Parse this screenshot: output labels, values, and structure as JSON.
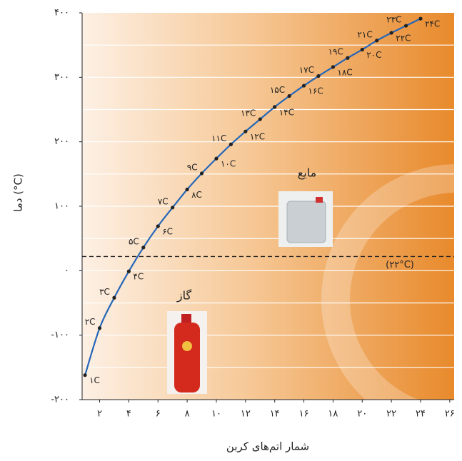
{
  "chart_data": {
    "type": "line",
    "y_axis_label": "دما (°C)",
    "x_axis_label": "شمار اتم‌های کربن",
    "x": [
      1,
      2,
      3,
      4,
      5,
      6,
      7,
      8,
      9,
      10,
      11,
      12,
      13,
      14,
      15,
      16,
      17,
      18,
      19,
      20,
      21,
      22,
      23,
      24
    ],
    "series": [
      {
        "color": "#2566b8",
        "values": [
          -162,
          -89,
          -42,
          -1,
          36,
          69,
          98,
          126,
          151,
          174,
          196,
          216,
          235,
          254,
          271,
          287,
          302,
          316,
          330,
          343,
          357,
          369,
          380,
          391
        ],
        "point_labels": [
          "۱C",
          "۲C",
          "۳C",
          "۴C",
          "۵C",
          "۶C",
          "۷C",
          "۸C",
          "۹C",
          "۱۰C",
          "۱۱C",
          "۱۲C",
          "۱۳C",
          "۱۴C",
          "۱۵C",
          "۱۶C",
          "۱۷C",
          "۱۸C",
          "۱۹C",
          "۲۰C",
          "۲۱C",
          "۲۲C",
          "۲۳C",
          "۲۴C"
        ]
      }
    ],
    "xlim": [
      0.8,
      26.3
    ],
    "ylim": [
      -200,
      400
    ],
    "xticks": [
      {
        "value": 2,
        "label": "۲"
      },
      {
        "value": 4,
        "label": "۴"
      },
      {
        "value": 6,
        "label": "۶"
      },
      {
        "value": 8,
        "label": "۸"
      },
      {
        "value": 10,
        "label": "۱۰"
      },
      {
        "value": 12,
        "label": "۱۲"
      },
      {
        "value": 14,
        "label": "۱۴"
      },
      {
        "value": 16,
        "label": "۱۶"
      },
      {
        "value": 18,
        "label": "۱۸"
      },
      {
        "value": 20,
        "label": "۲۰"
      },
      {
        "value": 22,
        "label": "۲۲"
      },
      {
        "value": 24,
        "label": "۲۴"
      },
      {
        "value": 26,
        "label": "۲۶"
      }
    ],
    "yticks": [
      {
        "value": -200,
        "label": "-۲۰۰"
      },
      {
        "value": -100,
        "label": "-۱۰۰"
      },
      {
        "value": 0,
        "label": "۰"
      },
      {
        "value": 100,
        "label": "۱۰۰"
      },
      {
        "value": 200,
        "label": "۲۰۰"
      },
      {
        "value": 300,
        "label": "۳۰۰"
      },
      {
        "value": 400,
        "label": "۴۰۰"
      }
    ],
    "y_gridlines": [
      -150,
      -100,
      -50,
      0,
      50,
      100,
      150,
      200,
      250,
      300,
      350
    ],
    "reference_line": {
      "value": 22,
      "label": "(۲۲°C)"
    },
    "annotations": [
      "مایع",
      "گاز"
    ]
  }
}
